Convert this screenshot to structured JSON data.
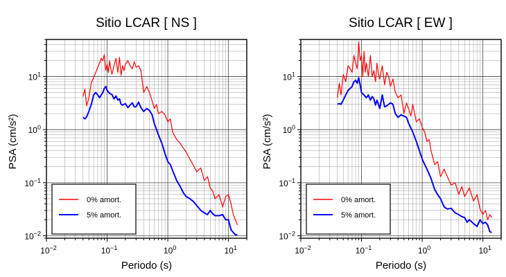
{
  "chart_data": [
    {
      "type": "line",
      "title": "Sitio LCAR [ NS ]",
      "xlabel": "Periodo (s)",
      "ylabel": "PSA (cm/s²)",
      "xscale": "log",
      "yscale": "log",
      "xlim": [
        0.01,
        20
      ],
      "ylim": [
        0.009,
        50
      ],
      "x_ticks": [
        {
          "value": 0.01,
          "base": "10",
          "exp": "−2"
        },
        {
          "value": 0.1,
          "base": "10",
          "exp": "−1"
        },
        {
          "value": 1,
          "base": "10",
          "exp": "0"
        },
        {
          "value": 10,
          "base": "10",
          "exp": "1"
        }
      ],
      "y_ticks": [
        {
          "value": 0.01,
          "base": "10",
          "exp": "−2"
        },
        {
          "value": 0.1,
          "base": "10",
          "exp": "−1"
        },
        {
          "value": 1,
          "base": "10",
          "exp": "0"
        },
        {
          "value": 10,
          "base": "10",
          "exp": "1"
        }
      ],
      "grid": true,
      "legend_position": "bottom-left",
      "series": [
        {
          "name": "0% amort.",
          "color": "#ff0000",
          "x": [
            0.04,
            0.043,
            0.046,
            0.05,
            0.055,
            0.06,
            0.065,
            0.07,
            0.075,
            0.08,
            0.085,
            0.09,
            0.095,
            0.1,
            0.105,
            0.11,
            0.115,
            0.12,
            0.13,
            0.14,
            0.15,
            0.16,
            0.17,
            0.18,
            0.19,
            0.2,
            0.22,
            0.24,
            0.26,
            0.28,
            0.3,
            0.33,
            0.36,
            0.4,
            0.45,
            0.5,
            0.55,
            0.6,
            0.65,
            0.7,
            0.8,
            0.9,
            1.0,
            1.1,
            1.2,
            1.4,
            1.6,
            1.8,
            2.0,
            2.3,
            2.6,
            3.0,
            3.5,
            4.0,
            4.5,
            5.0,
            5.5,
            6.0,
            7.0,
            8.0,
            9.0,
            10.0,
            11.0,
            12.0,
            13.0,
            14.0
          ],
          "y": [
            4.2,
            5.8,
            2.8,
            4.0,
            7.8,
            9.5,
            12.0,
            15.0,
            18.0,
            22.0,
            20.0,
            26.0,
            13.0,
            17.0,
            12.0,
            20.0,
            14.0,
            11.0,
            16.0,
            22.0,
            12.0,
            23.0,
            10.5,
            16.0,
            13.0,
            17.0,
            20.0,
            16.0,
            14.0,
            19.0,
            15.0,
            16.0,
            13.0,
            5.0,
            6.5,
            5.0,
            3.5,
            2.5,
            3.0,
            2.0,
            2.2,
            1.9,
            1.4,
            1.6,
            0.9,
            0.65,
            0.55,
            0.45,
            0.38,
            0.28,
            0.22,
            0.16,
            0.19,
            0.11,
            0.13,
            0.08,
            0.07,
            0.05,
            0.06,
            0.035,
            0.055,
            0.06,
            0.04,
            0.025,
            0.02,
            0.016
          ]
        },
        {
          "name": "5% amort.",
          "color": "#0000ff",
          "x": [
            0.04,
            0.043,
            0.046,
            0.05,
            0.055,
            0.06,
            0.065,
            0.07,
            0.075,
            0.08,
            0.085,
            0.09,
            0.095,
            0.1,
            0.11,
            0.12,
            0.13,
            0.14,
            0.15,
            0.16,
            0.17,
            0.18,
            0.2,
            0.22,
            0.24,
            0.26,
            0.28,
            0.3,
            0.33,
            0.36,
            0.4,
            0.45,
            0.5,
            0.55,
            0.6,
            0.7,
            0.8,
            0.9,
            1.0,
            1.1,
            1.2,
            1.4,
            1.6,
            1.8,
            2.0,
            2.3,
            2.6,
            3.0,
            3.5,
            4.0,
            4.5,
            5.0,
            5.5,
            6.0,
            7.0,
            8.0,
            9.0,
            10.0,
            11.0,
            12.0,
            13.0,
            14.0
          ],
          "y": [
            1.7,
            1.6,
            1.75,
            2.2,
            3.0,
            4.5,
            5.0,
            4.5,
            4.0,
            4.5,
            5.0,
            6.0,
            6.5,
            5.5,
            4.8,
            4.6,
            3.8,
            4.3,
            3.6,
            3.8,
            3.0,
            2.9,
            3.1,
            2.6,
            2.9,
            3.2,
            2.7,
            2.7,
            3.3,
            2.6,
            2.2,
            2.5,
            2.3,
            1.9,
            1.3,
            0.8,
            0.55,
            0.35,
            0.25,
            0.22,
            0.17,
            0.11,
            0.085,
            0.065,
            0.055,
            0.05,
            0.045,
            0.037,
            0.03,
            0.027,
            0.025,
            0.03,
            0.026,
            0.024,
            0.024,
            0.025,
            0.02,
            0.02,
            0.013,
            0.0115,
            0.0105,
            0.0105
          ]
        }
      ]
    },
    {
      "type": "line",
      "title": "Sitio LCAR [ EW ]",
      "xlabel": "Periodo (s)",
      "ylabel": "PSA (cm/s²)",
      "xscale": "log",
      "yscale": "log",
      "xlim": [
        0.01,
        20
      ],
      "ylim": [
        0.009,
        50
      ],
      "x_ticks": [
        {
          "value": 0.01,
          "base": "10",
          "exp": "−2"
        },
        {
          "value": 0.1,
          "base": "10",
          "exp": "−1"
        },
        {
          "value": 1,
          "base": "10",
          "exp": "0"
        },
        {
          "value": 10,
          "base": "10",
          "exp": "1"
        }
      ],
      "y_ticks": [
        {
          "value": 0.01,
          "base": "10",
          "exp": "−2"
        },
        {
          "value": 0.1,
          "base": "10",
          "exp": "−1"
        },
        {
          "value": 1,
          "base": "10",
          "exp": "0"
        },
        {
          "value": 10,
          "base": "10",
          "exp": "1"
        }
      ],
      "grid": true,
      "legend_position": "bottom-left",
      "series": [
        {
          "name": "0% amort.",
          "color": "#ff0000",
          "x": [
            0.04,
            0.043,
            0.046,
            0.05,
            0.055,
            0.06,
            0.065,
            0.07,
            0.075,
            0.08,
            0.085,
            0.09,
            0.095,
            0.1,
            0.105,
            0.11,
            0.115,
            0.12,
            0.13,
            0.14,
            0.15,
            0.16,
            0.17,
            0.18,
            0.19,
            0.2,
            0.22,
            0.24,
            0.26,
            0.28,
            0.3,
            0.33,
            0.36,
            0.4,
            0.45,
            0.5,
            0.55,
            0.6,
            0.65,
            0.7,
            0.8,
            0.9,
            1.0,
            1.1,
            1.2,
            1.3,
            1.4,
            1.6,
            1.8,
            2.0,
            2.3,
            2.6,
            3.0,
            3.5,
            4.0,
            4.5,
            5.0,
            6.0,
            7.0,
            8.0,
            9.0,
            10.0,
            11.0,
            12.0,
            13.0,
            14.0
          ],
          "y": [
            4.0,
            7.5,
            4.5,
            11.0,
            8.0,
            16.0,
            14.0,
            12.0,
            25.0,
            18.0,
            14.0,
            45.0,
            20.0,
            25.0,
            10.0,
            30.0,
            12.0,
            18.0,
            10.0,
            25.0,
            10.0,
            13.0,
            8.0,
            18.0,
            11.0,
            9.0,
            16.0,
            7.0,
            12.0,
            10.0,
            6.5,
            9.0,
            5.0,
            4.0,
            4.5,
            2.0,
            3.2,
            2.4,
            1.8,
            3.0,
            1.4,
            1.6,
            1.1,
            0.9,
            0.6,
            0.65,
            0.4,
            0.22,
            0.25,
            0.13,
            0.18,
            0.13,
            0.09,
            0.1,
            0.06,
            0.085,
            0.055,
            0.08,
            0.045,
            0.06,
            0.032,
            0.025,
            0.03,
            0.02,
            0.025,
            0.022
          ]
        },
        {
          "name": "5% amort.",
          "color": "#0000ff",
          "x": [
            0.04,
            0.043,
            0.046,
            0.05,
            0.055,
            0.06,
            0.065,
            0.07,
            0.075,
            0.08,
            0.085,
            0.09,
            0.095,
            0.1,
            0.11,
            0.12,
            0.13,
            0.14,
            0.15,
            0.16,
            0.17,
            0.18,
            0.2,
            0.22,
            0.24,
            0.26,
            0.28,
            0.3,
            0.33,
            0.36,
            0.4,
            0.45,
            0.5,
            0.55,
            0.6,
            0.7,
            0.8,
            0.9,
            1.0,
            1.1,
            1.2,
            1.4,
            1.6,
            1.8,
            2.0,
            2.3,
            2.6,
            3.0,
            3.5,
            4.0,
            4.5,
            5.0,
            5.5,
            6.0,
            7.0,
            8.0,
            9.0,
            10.0,
            11.0,
            12.0,
            13.0,
            14.0
          ],
          "y": [
            3.0,
            3.1,
            3.0,
            3.6,
            4.5,
            5.5,
            6.0,
            6.5,
            8.0,
            8.5,
            7.5,
            9.5,
            7.0,
            5.0,
            4.5,
            4.0,
            4.5,
            3.6,
            4.2,
            3.8,
            2.9,
            3.6,
            2.5,
            4.5,
            2.7,
            2.8,
            3.0,
            3.2,
            3.0,
            2.0,
            1.7,
            1.9,
            1.8,
            1.7,
            1.3,
            0.9,
            0.6,
            0.4,
            0.28,
            0.22,
            0.18,
            0.12,
            0.075,
            0.06,
            0.05,
            0.035,
            0.032,
            0.033,
            0.027,
            0.025,
            0.023,
            0.022,
            0.018,
            0.02,
            0.017,
            0.015,
            0.02,
            0.017,
            0.018,
            0.016,
            0.012,
            0.0115
          ]
        }
      ]
    }
  ]
}
